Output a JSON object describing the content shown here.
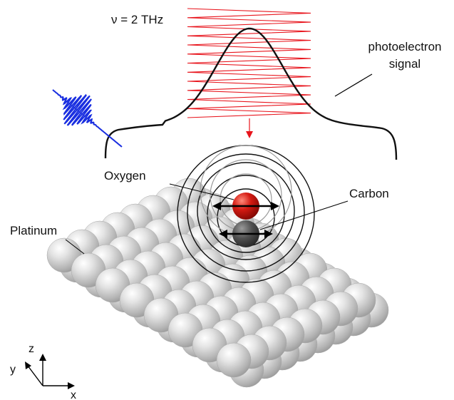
{
  "labels": {
    "frequency": "ν = 2 THz",
    "photoelectron_line1": "photoelectron",
    "photoelectron_line2": "signal",
    "oxygen": "Oxygen",
    "carbon": "Carbon",
    "platinum": "Platinum"
  },
  "axes": {
    "z": "z",
    "y": "y",
    "x": "x"
  },
  "colors": {
    "thz_wave": "#e8141c",
    "probe_pulse": "#1a2fe0",
    "signal_curve": "#111111",
    "oxygen_atom": "#d41a12",
    "carbon_atom": "#505050",
    "platinum_atom": "#d2d2d2"
  }
}
